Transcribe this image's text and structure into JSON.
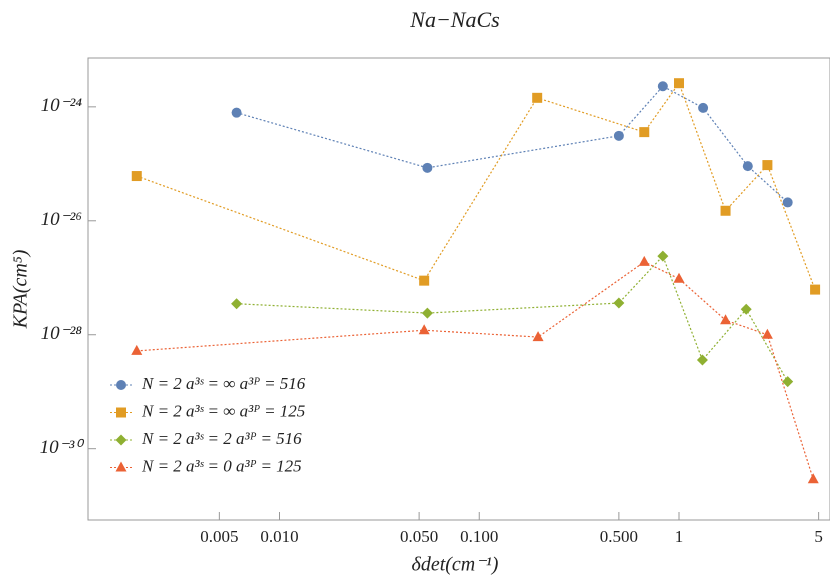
{
  "chart_data": {
    "type": "line",
    "title": "Na−NaCs",
    "x_label": "δdet(cm⁻¹)",
    "y_label": "KPA(cm⁵)",
    "log_x": true,
    "log_y": true,
    "xlim": [
      0.0011,
      5.7
    ],
    "ylim": [
      5.6e-32,
      7.2e-24
    ],
    "xticks": [
      {
        "value": 0.005,
        "label": "0.005"
      },
      {
        "value": 0.01,
        "label": "0.010"
      },
      {
        "value": 0.05,
        "label": "0.050"
      },
      {
        "value": 0.1,
        "label": "0.100"
      },
      {
        "value": 0.5,
        "label": "0.500"
      },
      1,
      5
    ],
    "yticks": [
      {
        "value": 1e-30,
        "label": "10⁻³⁰"
      },
      {
        "value": 1e-28,
        "label": "10⁻²⁸"
      },
      {
        "value": 1e-26,
        "label": "10⁻²⁶"
      },
      {
        "value": 1e-24,
        "label": "10⁻²⁴"
      }
    ],
    "legend_position": "lower left",
    "series": [
      {
        "name": "N = 2 a³ˢ = ∞ a³ᴾ = 516",
        "color": "#5e81b5",
        "marker": "circle",
        "x": [
          0.0061,
          0.055,
          0.5,
          0.83,
          1.32,
          2.21,
          3.5
        ],
        "values": [
          7.9e-25,
          8.5e-26,
          3.1e-25,
          2.3e-24,
          9.6e-25,
          9.1e-26,
          2.1e-26
        ]
      },
      {
        "name": "N = 2 a³ˢ = ∞ a³ᴾ = 125",
        "color": "#e19c24",
        "marker": "square",
        "x": [
          0.00193,
          0.053,
          0.195,
          0.67,
          1.0,
          1.71,
          2.77,
          4.8
        ],
        "values": [
          6.1e-26,
          8.9e-28,
          1.44e-24,
          3.6e-25,
          2.6e-24,
          1.5e-26,
          9.5e-26,
          6.2e-28
        ]
      },
      {
        "name": "N = 2 a³ˢ = 2 a³ᴾ = 516",
        "color": "#8fb032",
        "marker": "diamond",
        "x": [
          0.0061,
          0.055,
          0.5,
          0.83,
          1.31,
          2.17,
          3.5
        ],
        "values": [
          3.5e-28,
          2.4e-28,
          3.6e-28,
          2.4e-27,
          3.6e-29,
          2.8e-28,
          1.5e-29
        ]
      },
      {
        "name": "N = 2 a³ˢ = 0 a³ᴾ = 125",
        "color": "#eb6235",
        "marker": "triangle",
        "x": [
          0.00193,
          0.053,
          0.197,
          0.67,
          1.0,
          1.71,
          2.77,
          4.7
        ],
        "values": [
          5.2e-29,
          1.2e-28,
          9.1e-29,
          1.9e-27,
          9.6e-28,
          1.8e-28,
          1e-28,
          2.9e-31
        ]
      }
    ]
  }
}
